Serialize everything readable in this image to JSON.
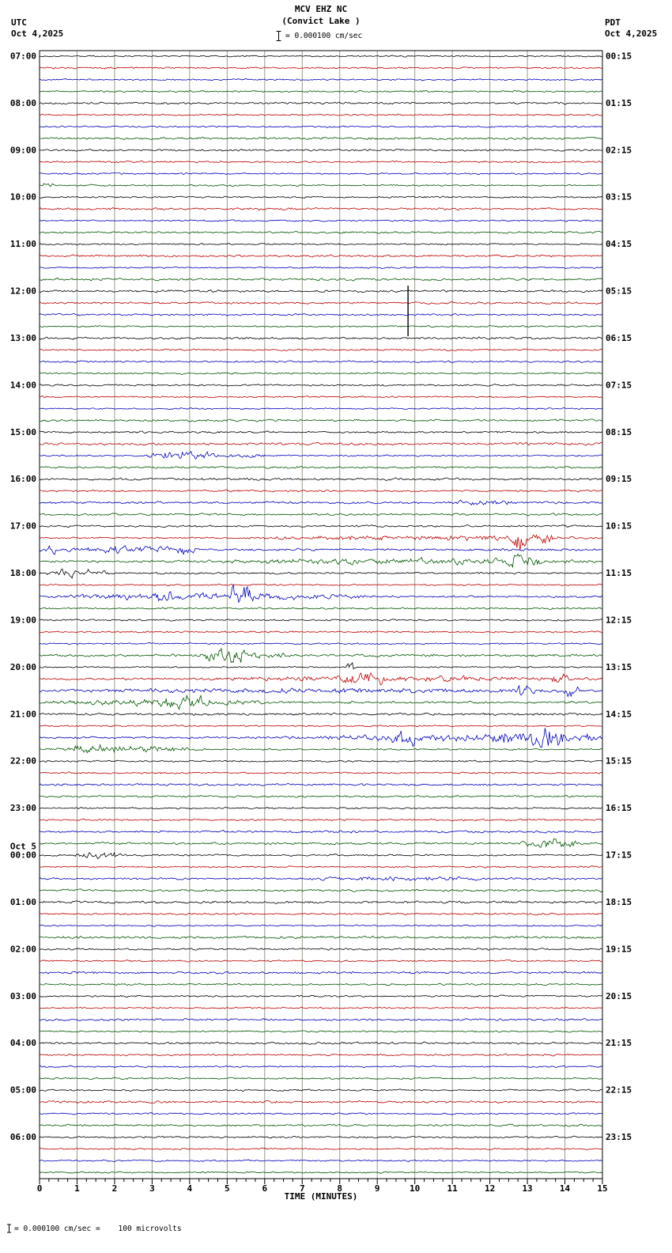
{
  "header": {
    "title": "MCV EHZ NC",
    "subtitle": "(Convict Lake )",
    "left_tz": "UTC",
    "left_date": "Oct 4,2025",
    "right_tz": "PDT",
    "right_date": "Oct 4,2025",
    "scale_label": "= 0.000100 cm/sec"
  },
  "footer": {
    "scale_label": "= 0.000100 cm/sec =    100 microvolts"
  },
  "chart_data": {
    "type": "line",
    "kind": "seismogram-helicorder",
    "station": "MCV EHZ NC (Convict Lake )",
    "xlabel": "TIME (MINUTES)",
    "x_range": [
      0,
      15
    ],
    "x_ticks": [
      0,
      1,
      2,
      3,
      4,
      5,
      6,
      7,
      8,
      9,
      10,
      11,
      12,
      13,
      14,
      15
    ],
    "minutes_per_row": 15,
    "rows": 96,
    "row_start_utc": "07:00",
    "trace_colors_cycle": [
      "black",
      "red",
      "blue",
      "green"
    ],
    "palette": {
      "black": "#000000",
      "red": "#bb0000",
      "blue": "#0000bb",
      "green": "#005500",
      "grid": "#9a9a8e",
      "border": "#000000"
    },
    "utc_hour_labels": [
      "07:00",
      "08:00",
      "09:00",
      "10:00",
      "11:00",
      "12:00",
      "13:00",
      "14:00",
      "15:00",
      "16:00",
      "17:00",
      "18:00",
      "19:00",
      "20:00",
      "21:00",
      "22:00",
      "23:00",
      "00:00",
      "01:00",
      "02:00",
      "03:00",
      "04:00",
      "05:00",
      "06:00"
    ],
    "utc_day_break": {
      "label": "Oct 5",
      "before_label": "00:00"
    },
    "pdt_hour_labels": [
      "00:15",
      "01:15",
      "02:15",
      "03:15",
      "04:15",
      "05:15",
      "06:15",
      "07:15",
      "08:15",
      "09:15",
      "10:15",
      "11:15",
      "12:15",
      "13:15",
      "14:15",
      "15:15",
      "16:15",
      "17:15",
      "18:15",
      "19:15",
      "20:15",
      "21:15",
      "22:15",
      "23:15"
    ],
    "noise_base_amp": 1.05,
    "events": [
      {
        "row": 11,
        "x0": 0.05,
        "x1": 0.4,
        "amp": 4.0
      },
      {
        "row": 34,
        "x0": 2.8,
        "x1": 4.9,
        "amp": 5.0
      },
      {
        "row": 34,
        "x0": 4.9,
        "x1": 6.2,
        "amp": 2.0
      },
      {
        "row": 38,
        "x0": 10.8,
        "x1": 12.9,
        "amp": 1.8
      },
      {
        "row": 41,
        "x0": 5.5,
        "x1": 15,
        "amp": 2.2
      },
      {
        "row": 41,
        "x0": 12.5,
        "x1": 13.05,
        "amp": 11.0
      },
      {
        "row": 41,
        "x0": 13.05,
        "x1": 13.7,
        "amp": 4.5
      },
      {
        "row": 42,
        "x0": 0,
        "x1": 0.6,
        "amp": 4.0
      },
      {
        "row": 42,
        "x0": 0.5,
        "x1": 4.3,
        "amp": 2.8
      },
      {
        "row": 42,
        "x0": 3.6,
        "x1": 4.2,
        "amp": 3.6
      },
      {
        "row": 43,
        "x0": 4.0,
        "x1": 15,
        "amp": 2.2
      },
      {
        "row": 43,
        "x0": 12.25,
        "x1": 13.35,
        "amp": 6.5
      },
      {
        "row": 44,
        "x0": 0.1,
        "x1": 2.0,
        "amp": 4.0
      },
      {
        "row": 46,
        "x0": 0,
        "x1": 9.6,
        "amp": 2.6
      },
      {
        "row": 46,
        "x0": 2.9,
        "x1": 3.6,
        "amp": 4.0
      },
      {
        "row": 46,
        "x0": 4.85,
        "x1": 6.0,
        "amp": 8.5
      },
      {
        "row": 51,
        "x0": 4.0,
        "x1": 7.0,
        "amp": 2.4
      },
      {
        "row": 51,
        "x0": 4.3,
        "x1": 5.7,
        "amp": 5.5
      },
      {
        "row": 52,
        "x0": 8.15,
        "x1": 8.4,
        "amp": 6.0
      },
      {
        "row": 53,
        "x0": 4.0,
        "x1": 15,
        "amp": 2.0
      },
      {
        "row": 53,
        "x0": 7.9,
        "x1": 9.4,
        "amp": 6.0
      },
      {
        "row": 53,
        "x0": 13.6,
        "x1": 14.2,
        "amp": 3.5
      },
      {
        "row": 54,
        "x0": 0,
        "x1": 15,
        "amp": 1.9
      },
      {
        "row": 54,
        "x0": 12.7,
        "x1": 13.2,
        "amp": 9.5
      },
      {
        "row": 54,
        "x0": 13.9,
        "x1": 14.45,
        "amp": 6.5
      },
      {
        "row": 55,
        "x0": 0,
        "x1": 6.2,
        "amp": 2.3
      },
      {
        "row": 55,
        "x0": 3.0,
        "x1": 4.7,
        "amp": 4.8
      },
      {
        "row": 58,
        "x0": 6.3,
        "x1": 15,
        "amp": 2.8
      },
      {
        "row": 58,
        "x0": 9.3,
        "x1": 10.2,
        "amp": 5.5
      },
      {
        "row": 58,
        "x0": 11.8,
        "x1": 12.7,
        "amp": 5.5
      },
      {
        "row": 58,
        "x0": 12.7,
        "x1": 14.2,
        "amp": 9.5
      },
      {
        "row": 58,
        "x0": 14.3,
        "x1": 15,
        "amp": 4.0
      },
      {
        "row": 59,
        "x0": 0.3,
        "x1": 4.3,
        "amp": 3.2
      },
      {
        "row": 59,
        "x0": 0.8,
        "x1": 1.7,
        "amp": 4.5
      },
      {
        "row": 67,
        "x0": 12.8,
        "x1": 14.4,
        "amp": 5.0
      },
      {
        "row": 68,
        "x0": 0.8,
        "x1": 2.4,
        "amp": 3.2
      },
      {
        "row": 70,
        "x0": 7.0,
        "x1": 12.0,
        "amp": 1.6
      }
    ],
    "spikes": [
      {
        "row": 20,
        "x": 9.82,
        "up": 7,
        "down": 57
      }
    ]
  }
}
